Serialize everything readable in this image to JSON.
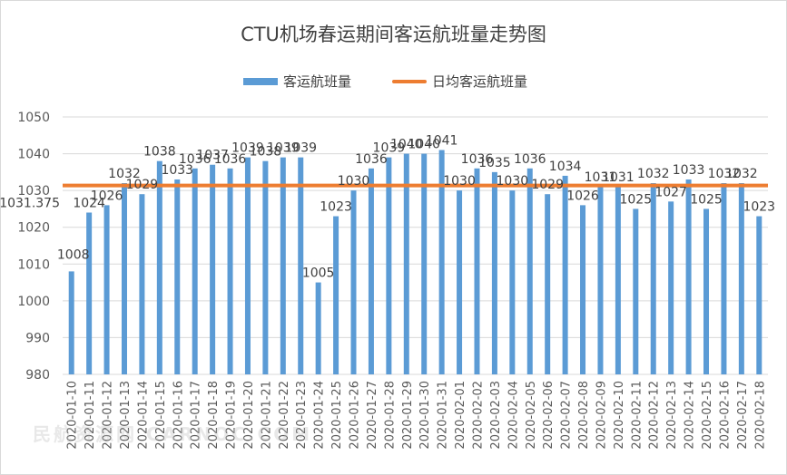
{
  "chart_data": {
    "type": "bar",
    "title": "CTU机场春运期间客运航班量走势图",
    "ylim": [
      980,
      1050
    ],
    "yticks": [
      980,
      990,
      1000,
      1010,
      1020,
      1030,
      1040,
      1050
    ],
    "grid": true,
    "legend_position": "top",
    "categories": [
      "2020-01-10",
      "2020-01-11",
      "2020-01-12",
      "2020-01-13",
      "2020-01-14",
      "2020-01-15",
      "2020-01-16",
      "2020-01-17",
      "2020-01-18",
      "2020-01-19",
      "2020-01-20",
      "2020-01-21",
      "2020-01-22",
      "2020-01-23",
      "2020-01-24",
      "2020-01-25",
      "2020-01-26",
      "2020-01-27",
      "2020-01-28",
      "2020-01-29",
      "2020-01-30",
      "2020-01-31",
      "2020-02-01",
      "2020-02-02",
      "2020-02-03",
      "2020-02-04",
      "2020-02-05",
      "2020-02-06",
      "2020-02-07",
      "2020-02-08",
      "2020-02-09",
      "2020-02-10",
      "2020-02-11",
      "2020-02-12",
      "2020-02-13",
      "2020-02-14",
      "2020-02-15",
      "2020-02-16",
      "2020-02-17",
      "2020-02-18"
    ],
    "series": [
      {
        "name": "客运航班量",
        "type": "bar",
        "color": "#5b9bd5",
        "values": [
          1008,
          1024,
          1026,
          1032,
          1029,
          1038,
          1033,
          1036,
          1037,
          1036,
          1039,
          1038,
          1039,
          1039,
          1005,
          1023,
          1030,
          1036,
          1039,
          1040,
          1040,
          1041,
          1030,
          1036,
          1035,
          1030,
          1036,
          1029,
          1034,
          1026,
          1031,
          1031,
          1025,
          1032,
          1027,
          1033,
          1025,
          1032,
          1032,
          1023
        ]
      },
      {
        "name": "日均客运航班量",
        "type": "line",
        "color": "#ed7d31",
        "value": 1031.375,
        "label": "1031.375"
      }
    ]
  },
  "watermark": "民航资源网 CARNOC.COM"
}
